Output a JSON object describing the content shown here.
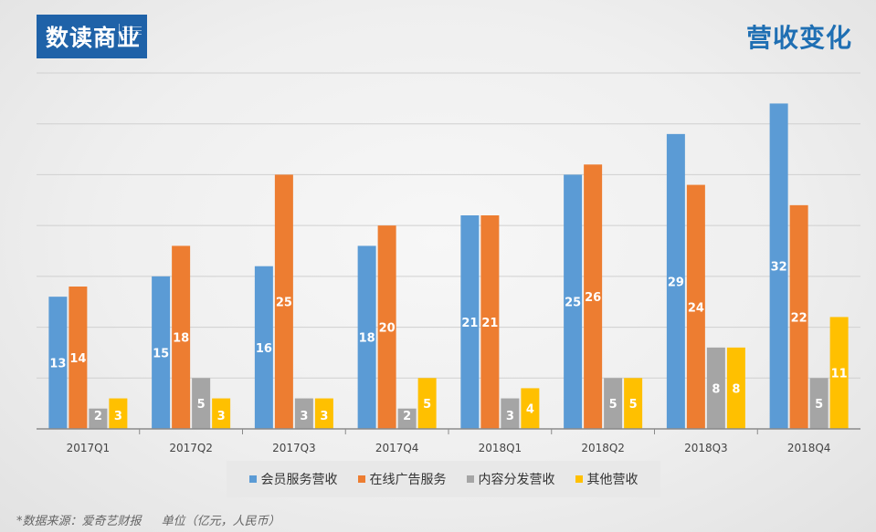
{
  "logo": {
    "text": "数读商业"
  },
  "page_title": "营收变化",
  "chart_data": {
    "type": "bar",
    "categories": [
      "2017Q1",
      "2017Q2",
      "2017Q3",
      "2017Q4",
      "2018Q1",
      "2018Q2",
      "2018Q3",
      "2018Q4"
    ],
    "series": [
      {
        "name": "会员服务营收",
        "color": "#5b9bd5",
        "values": [
          13,
          15,
          16,
          18,
          21,
          25,
          29,
          32
        ]
      },
      {
        "name": "在线广告服务",
        "color": "#ed7d31",
        "values": [
          14,
          18,
          25,
          20,
          21,
          26,
          24,
          22
        ]
      },
      {
        "name": "内容分发营收",
        "color": "#a5a5a5",
        "values": [
          2,
          5,
          3,
          2,
          3,
          5,
          8,
          5
        ]
      },
      {
        "name": "其他营收",
        "color": "#ffc000",
        "values": [
          3,
          3,
          3,
          5,
          4,
          5,
          8,
          11
        ]
      }
    ],
    "ylim": [
      0,
      35
    ],
    "grid": true,
    "legend_position": "bottom"
  },
  "footer": {
    "source": "*数据来源：爱奇艺财报",
    "unit": "单位（亿元，人民币）"
  }
}
